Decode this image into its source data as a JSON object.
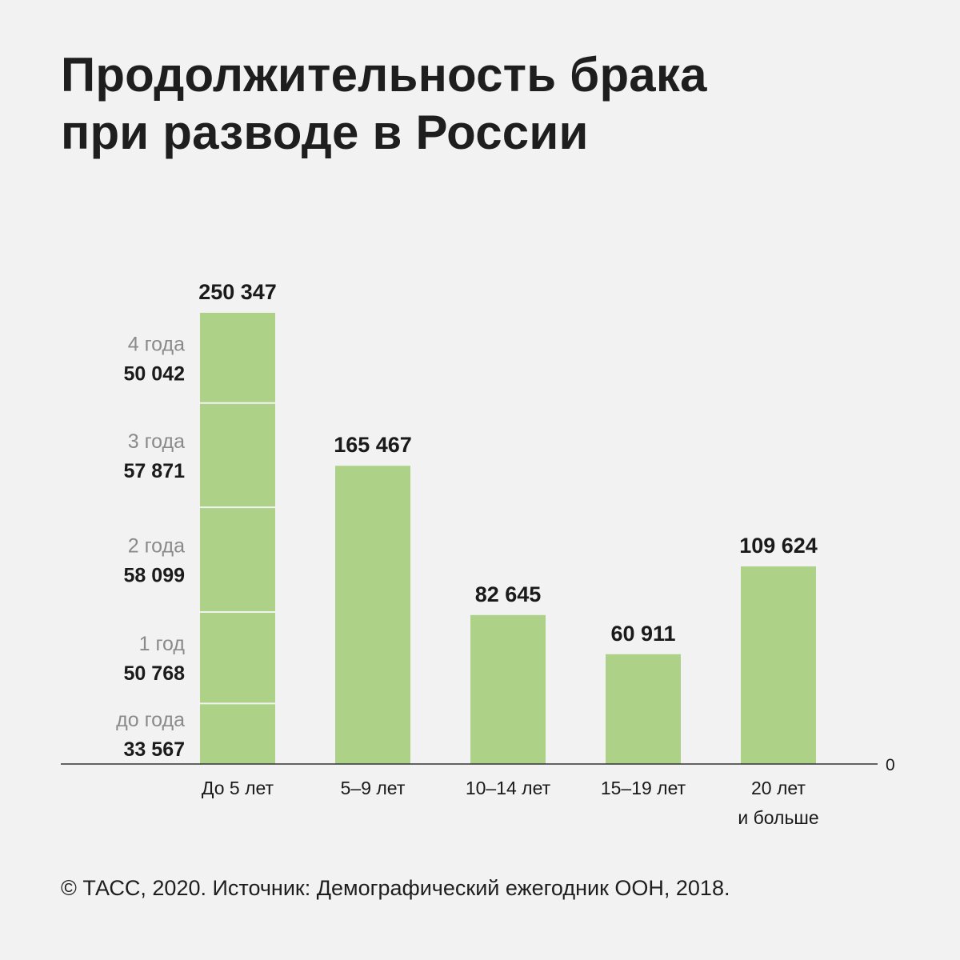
{
  "title_lines": [
    "Продолжительность брака",
    "при разводе в России"
  ],
  "footer": "© ТАСС, 2020. Источник: Демографический ежегодник ООН, 2018.",
  "colors": {
    "bar": "#add186",
    "axis": "#333333",
    "segment_divider": "#f2f2f2",
    "sub_label": "#8a8a8a",
    "value": "#1a1a1a",
    "background": "#f2f2f2"
  },
  "chart_data": {
    "type": "bar",
    "title": "Продолжительность брака при разводе в России",
    "xlabel": "",
    "ylabel": "",
    "ylim": [
      0,
      250347
    ],
    "axis_zero_label": "0",
    "categories": [
      [
        "До 5 лет"
      ],
      [
        "5–9 лет"
      ],
      [
        "10–14 лет"
      ],
      [
        "15–19 лет"
      ],
      [
        "20 лет",
        "и больше"
      ]
    ],
    "values": [
      250347,
      165467,
      82645,
      60911,
      109624
    ],
    "value_labels": [
      "250 347",
      "165 467",
      "82 645",
      "60 911",
      "109 624"
    ],
    "first_bar_breakdown": [
      {
        "label": "до года",
        "value": 33567,
        "value_label": "33 567"
      },
      {
        "label": "1 год",
        "value": 50768,
        "value_label": "50 768"
      },
      {
        "label": "2 года",
        "value": 58099,
        "value_label": "58 099"
      },
      {
        "label": "3 года",
        "value": 57871,
        "value_label": "57 871"
      },
      {
        "label": "4 года",
        "value": 50042,
        "value_label": "50 042"
      }
    ]
  }
}
